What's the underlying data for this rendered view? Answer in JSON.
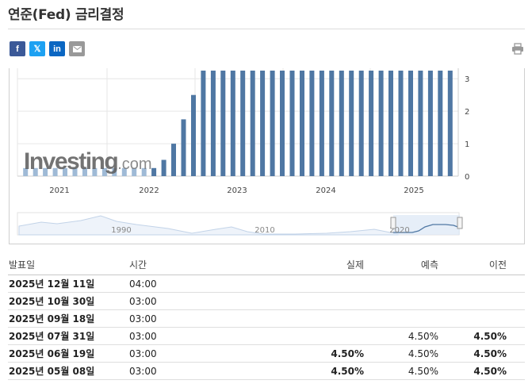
{
  "page_title": "연준(Fed) 금리결정",
  "share": {
    "facebook": "f",
    "twitter": "𝕏",
    "linkedin": "in",
    "email_icon": "envelope-icon"
  },
  "print_icon": "printer-icon",
  "chart_data": {
    "type": "bar",
    "title": "",
    "watermark": "Investing.com",
    "x_tick_labels": [
      "2021",
      "2022",
      "2023",
      "2024",
      "2025"
    ],
    "y_tick_labels": [
      "0",
      "1",
      "2",
      "3"
    ],
    "ylim": [
      0,
      3.2
    ],
    "grid": true,
    "bar_color": "#4f77a3",
    "bar_color_light": "#9fbad6",
    "values": [
      0.25,
      0.25,
      0.25,
      0.25,
      0.25,
      0.25,
      0.25,
      0.25,
      0.25,
      0.25,
      0.25,
      0.25,
      0.25,
      0.25,
      0.5,
      1.0,
      1.75,
      2.5,
      3.25,
      3.25,
      3.25,
      3.25,
      3.25,
      3.25,
      3.25,
      3.25,
      3.25,
      3.25,
      3.25,
      3.25,
      3.25,
      3.25,
      3.25,
      3.25,
      3.25,
      3.25,
      3.25,
      3.25,
      3.25,
      3.25,
      3.25,
      3.25,
      3.25,
      3.25
    ],
    "light_count": 13,
    "navigator": {
      "labels": [
        "1990",
        "2010",
        "2020"
      ]
    }
  },
  "table": {
    "headers": {
      "date": "발표일",
      "time": "시간",
      "actual": "실제",
      "forecast": "예측",
      "previous": "이전"
    },
    "rows": [
      {
        "date": "2025년 12월 11일",
        "time": "04:00",
        "actual": "",
        "forecast": "",
        "previous": ""
      },
      {
        "date": "2025년 10월 30일",
        "time": "03:00",
        "actual": "",
        "forecast": "",
        "previous": ""
      },
      {
        "date": "2025년 09월 18일",
        "time": "03:00",
        "actual": "",
        "forecast": "",
        "previous": ""
      },
      {
        "date": "2025년 07월 31일",
        "time": "03:00",
        "actual": "",
        "forecast": "4.50%",
        "previous": "4.50%"
      },
      {
        "date": "2025년 06월 19일",
        "time": "03:00",
        "actual": "4.50%",
        "forecast": "4.50%",
        "previous": "4.50%"
      },
      {
        "date": "2025년 05월 08일",
        "time": "03:00",
        "actual": "4.50%",
        "forecast": "4.50%",
        "previous": "4.50%"
      }
    ]
  }
}
